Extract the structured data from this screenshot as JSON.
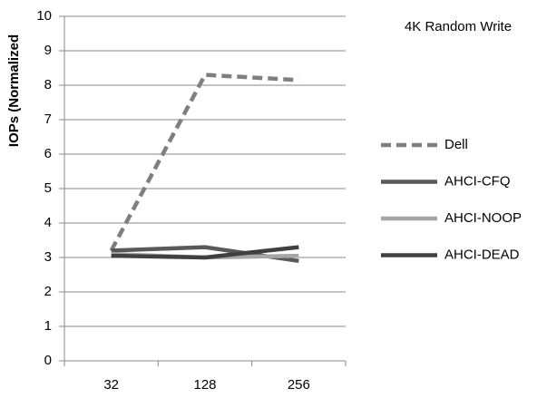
{
  "chart_data": {
    "type": "line",
    "title": "4K Random Write",
    "y_label": "IOPs (Normalized",
    "categories": [
      "32",
      "128",
      "256"
    ],
    "series": [
      {
        "name": "Dell",
        "color": "#7f7f7f",
        "line_style": "dashed",
        "values": [
          3.2,
          8.3,
          8.15
        ]
      },
      {
        "name": "AHCI-CFQ",
        "color": "#595959",
        "line_style": "solid",
        "values": [
          3.2,
          3.3,
          2.9
        ]
      },
      {
        "name": "AHCI-NOOP",
        "color": "#a6a6a6",
        "line_style": "solid",
        "values": [
          3.1,
          3.0,
          3.05
        ]
      },
      {
        "name": "AHCI-DEAD",
        "color": "#404040",
        "line_style": "solid",
        "values": [
          3.05,
          3.0,
          3.3
        ]
      }
    ],
    "ylim": [
      0,
      10
    ],
    "yticks": [
      0,
      1,
      2,
      3,
      4,
      5,
      6,
      7,
      8,
      9,
      10
    ],
    "grid": true,
    "legend": "right"
  }
}
